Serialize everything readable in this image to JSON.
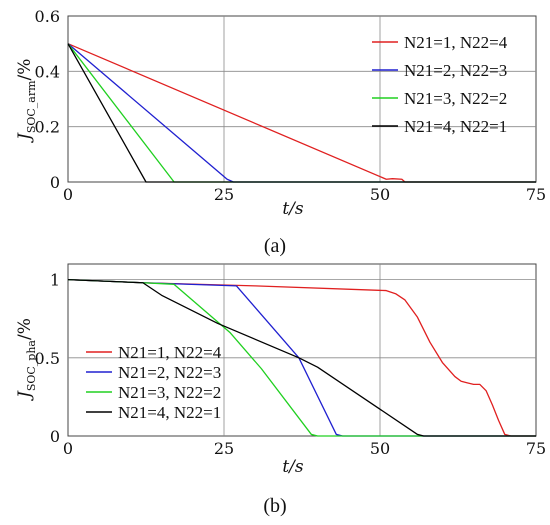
{
  "chart_data": [
    {
      "type": "line",
      "caption": "(a)",
      "xlabel": "t/s",
      "ylabel": "J_SOC_arm/%",
      "ylabel_main": "J",
      "ylabel_sub": "SOC_arm",
      "ylabel_unit": "/%",
      "xlim": [
        0,
        75
      ],
      "ylim": [
        0,
        0.6
      ],
      "xticks": [
        "0",
        "25",
        "50",
        "75"
      ],
      "yticks": [
        "0",
        "0.2",
        "0.4",
        "0.6"
      ],
      "grid": true,
      "legend_position": "top-right",
      "series": [
        {
          "name": "N21=1, N22=4",
          "color": "#e02020",
          "points": [
            [
              0,
              0.5
            ],
            [
              51,
              0.01
            ],
            [
              52,
              0.012
            ],
            [
              53.5,
              0.01
            ],
            [
              54,
              0
            ],
            [
              75,
              0
            ]
          ]
        },
        {
          "name": "N21=2, N22=3",
          "color": "#2020d0",
          "points": [
            [
              0,
              0.5
            ],
            [
              25.5,
              0.01
            ],
            [
              26.5,
              0
            ],
            [
              75,
              0
            ]
          ]
        },
        {
          "name": "N21=3, N22=2",
          "color": "#20d020",
          "points": [
            [
              0,
              0.5
            ],
            [
              17,
              0
            ],
            [
              75,
              0
            ]
          ]
        },
        {
          "name": "N21=4, N22=1",
          "color": "#000000",
          "points": [
            [
              0,
              0.5
            ],
            [
              12.5,
              0
            ],
            [
              75,
              0
            ]
          ]
        }
      ]
    },
    {
      "type": "line",
      "caption": "(b)",
      "xlabel": "t/s",
      "ylabel": "J_SOC_pha/%",
      "ylabel_main": "J",
      "ylabel_sub": "SOC_pha",
      "ylabel_unit": "/%",
      "xlim": [
        0,
        75
      ],
      "ylim": [
        0,
        1.1
      ],
      "xticks": [
        "0",
        "25",
        "50",
        "75"
      ],
      "yticks": [
        "0",
        "0.5",
        "1"
      ],
      "grid": true,
      "legend_position": "bottom-left",
      "series": [
        {
          "name": "N21=1, N22=4",
          "color": "#e02020",
          "points": [
            [
              0,
              1.0
            ],
            [
              12,
              0.98
            ],
            [
              30,
              0.96
            ],
            [
              51,
              0.93
            ],
            [
              52.5,
              0.91
            ],
            [
              54,
              0.87
            ],
            [
              56,
              0.76
            ],
            [
              58,
              0.6
            ],
            [
              60,
              0.47
            ],
            [
              62,
              0.38
            ],
            [
              63,
              0.35
            ],
            [
              64,
              0.34
            ],
            [
              65,
              0.33
            ],
            [
              66,
              0.33
            ],
            [
              67,
              0.29
            ],
            [
              68,
              0.2
            ],
            [
              69,
              0.1
            ],
            [
              70,
              0.01
            ],
            [
              71,
              0
            ],
            [
              75,
              0
            ]
          ]
        },
        {
          "name": "N21=2, N22=3",
          "color": "#2020d0",
          "points": [
            [
              0,
              1.0
            ],
            [
              12,
              0.98
            ],
            [
              27,
              0.96
            ],
            [
              37,
              0.5
            ],
            [
              43,
              0.01
            ],
            [
              44,
              0
            ],
            [
              75,
              0
            ]
          ]
        },
        {
          "name": "N21=3, N22=2",
          "color": "#20d020",
          "points": [
            [
              0,
              1.0
            ],
            [
              12,
              0.98
            ],
            [
              17,
              0.97
            ],
            [
              26,
              0.66
            ],
            [
              31,
              0.43
            ],
            [
              39,
              0.01
            ],
            [
              40,
              0
            ],
            [
              75,
              0
            ]
          ]
        },
        {
          "name": "N21=4, N22=1",
          "color": "#000000",
          "points": [
            [
              0,
              1.0
            ],
            [
              12,
              0.98
            ],
            [
              15,
              0.9
            ],
            [
              24,
              0.72
            ],
            [
              37,
              0.5
            ],
            [
              40,
              0.44
            ],
            [
              56,
              0.01
            ],
            [
              57,
              0
            ],
            [
              75,
              0
            ]
          ]
        }
      ]
    }
  ]
}
